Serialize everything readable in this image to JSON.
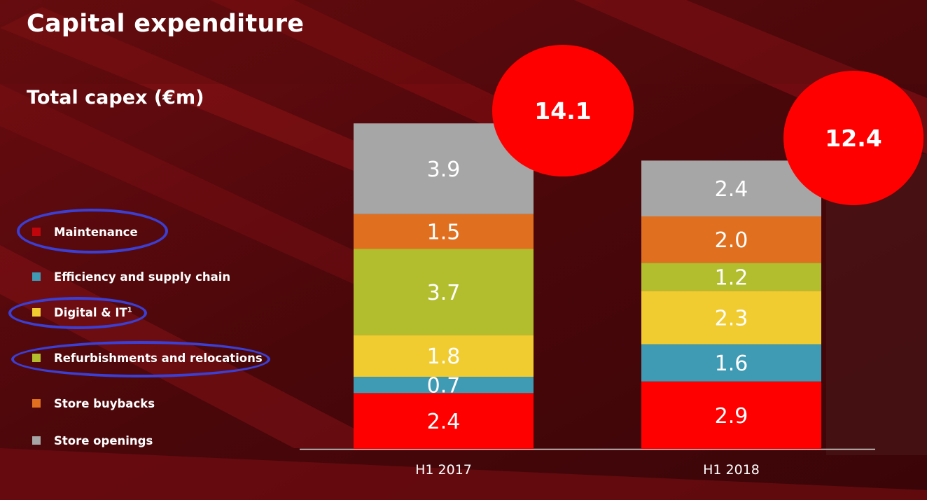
{
  "slide": {
    "title": "Capital expenditure",
    "subtitle": "Total capex (€m)"
  },
  "legend": {
    "items": [
      {
        "label": "Maintenance",
        "sup": "",
        "color": "#c0060c",
        "circled": true
      },
      {
        "label": "Efficiency and supply chain",
        "sup": "",
        "color": "#3f9ab4",
        "circled": false
      },
      {
        "label": "Digital & IT",
        "sup": "1",
        "color": "#f0cc30",
        "circled": true
      },
      {
        "label": "Refurbishments and relocations",
        "sup": "",
        "color": "#b2be2e",
        "circled": true
      },
      {
        "label": "Store buybacks",
        "sup": "",
        "color": "#e07020",
        "circled": false
      },
      {
        "label": "Store openings",
        "sup": "",
        "color": "#a6a6a6",
        "circled": false
      }
    ],
    "highlight_color": "#3a3fd6"
  },
  "chart_data": {
    "type": "bar",
    "stacked": true,
    "title": "Total capex (€m)",
    "categories": [
      "H1 2017",
      "H1 2018"
    ],
    "series": [
      {
        "name": "Maintenance",
        "color": "#ff0000",
        "values": [
          2.4,
          2.9
        ],
        "labels": [
          "2.4",
          "2.9"
        ]
      },
      {
        "name": "Efficiency and supply chain",
        "color": "#3f9ab4",
        "values": [
          0.7,
          1.6
        ],
        "labels": [
          "0.7",
          "1.6"
        ]
      },
      {
        "name": "Digital & IT",
        "color": "#f0cc30",
        "values": [
          1.8,
          2.3
        ],
        "labels": [
          "1.8",
          "2.3"
        ]
      },
      {
        "name": "Refurbishments and relocations",
        "color": "#b2be2e",
        "values": [
          3.7,
          1.2
        ],
        "labels": [
          "3.7",
          "1.2"
        ]
      },
      {
        "name": "Store buybacks",
        "color": "#e07020",
        "values": [
          1.5,
          2.0
        ],
        "labels": [
          "1.5",
          "2.0"
        ]
      },
      {
        "name": "Store openings",
        "color": "#a6a6a6",
        "values": [
          3.9,
          2.4
        ],
        "labels": [
          "3.9",
          "2.4"
        ]
      }
    ],
    "totals": [
      "14.1",
      "12.4"
    ],
    "total_badge_color": "#ff0000",
    "legend_position": "left",
    "grid": false
  }
}
